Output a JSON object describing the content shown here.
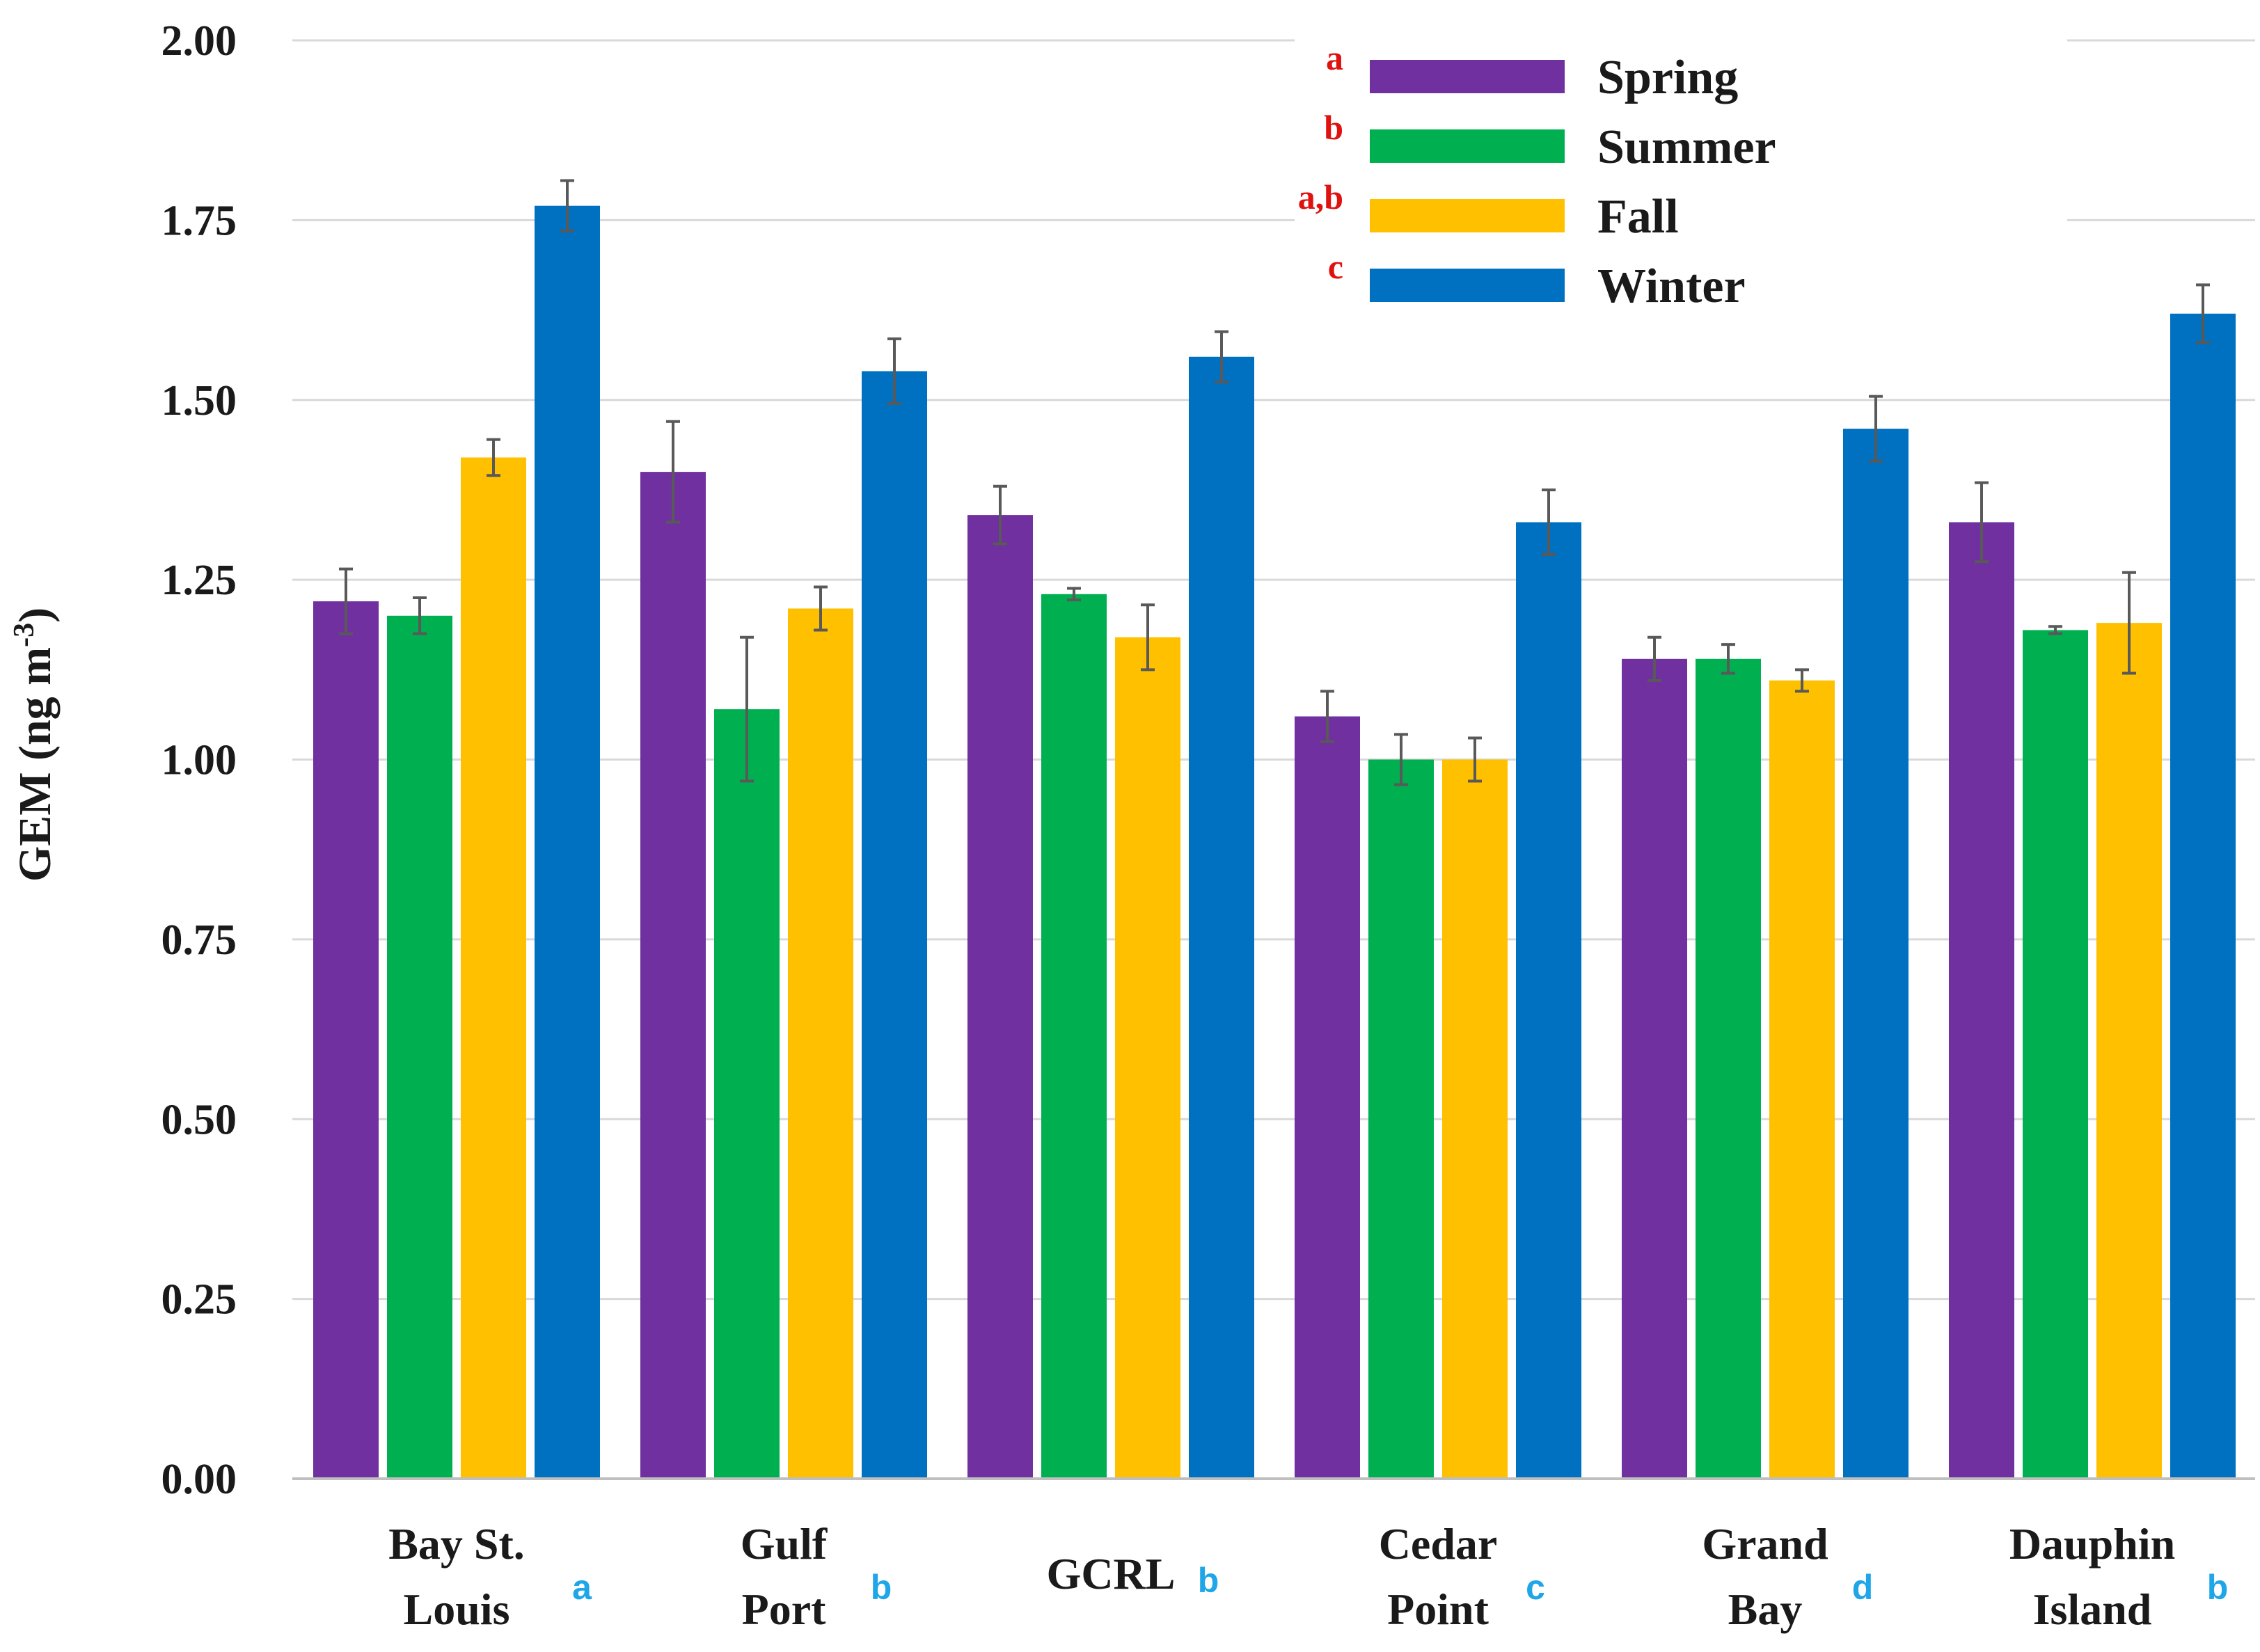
{
  "chart_data": {
    "type": "bar",
    "title": "",
    "xlabel": "",
    "ylabel": "GEM (ng m",
    "ylabel_sup": "-3",
    "ylabel_close": ")",
    "ylim": [
      0,
      2.0
    ],
    "yticks": [
      "0.00",
      "0.25",
      "0.50",
      "0.75",
      "1.00",
      "1.25",
      "1.50",
      "1.75",
      "2.00"
    ],
    "grid": true,
    "legend_position": "top-right",
    "categories": [
      {
        "lines": [
          "Bay St.",
          "Louis"
        ],
        "sig": "a"
      },
      {
        "lines": [
          "Gulf",
          "Port"
        ],
        "sig": "b"
      },
      {
        "lines": [
          "GCRL"
        ],
        "sig": "b"
      },
      {
        "lines": [
          "Cedar",
          "Point"
        ],
        "sig": "c"
      },
      {
        "lines": [
          "Grand",
          "Bay"
        ],
        "sig": "d"
      },
      {
        "lines": [
          "Dauphin",
          "Island"
        ],
        "sig": "b"
      }
    ],
    "series": [
      {
        "name": "Spring",
        "sig": "a",
        "color": "#7030a0",
        "values": [
          1.22,
          1.4,
          1.34,
          1.06,
          1.14,
          1.33
        ],
        "errors": [
          0.045,
          0.07,
          0.04,
          0.035,
          0.03,
          0.055
        ]
      },
      {
        "name": "Summer",
        "sig": "b",
        "color": "#00b050",
        "values": [
          1.2,
          1.07,
          1.23,
          1.0,
          1.14,
          1.18
        ],
        "errors": [
          0.025,
          0.1,
          0.008,
          0.035,
          0.02,
          0.005
        ]
      },
      {
        "name": "Fall",
        "sig": "a,b",
        "color": "#ffc000",
        "values": [
          1.42,
          1.21,
          1.17,
          1.0,
          1.11,
          1.19
        ],
        "errors": [
          0.025,
          0.03,
          0.045,
          0.03,
          0.015,
          0.07
        ]
      },
      {
        "name": "Winter",
        "sig": "c",
        "color": "#0070c0",
        "values": [
          1.77,
          1.54,
          1.56,
          1.33,
          1.46,
          1.62
        ],
        "errors": [
          0.035,
          0.045,
          0.035,
          0.045,
          0.045,
          0.04
        ]
      }
    ]
  }
}
